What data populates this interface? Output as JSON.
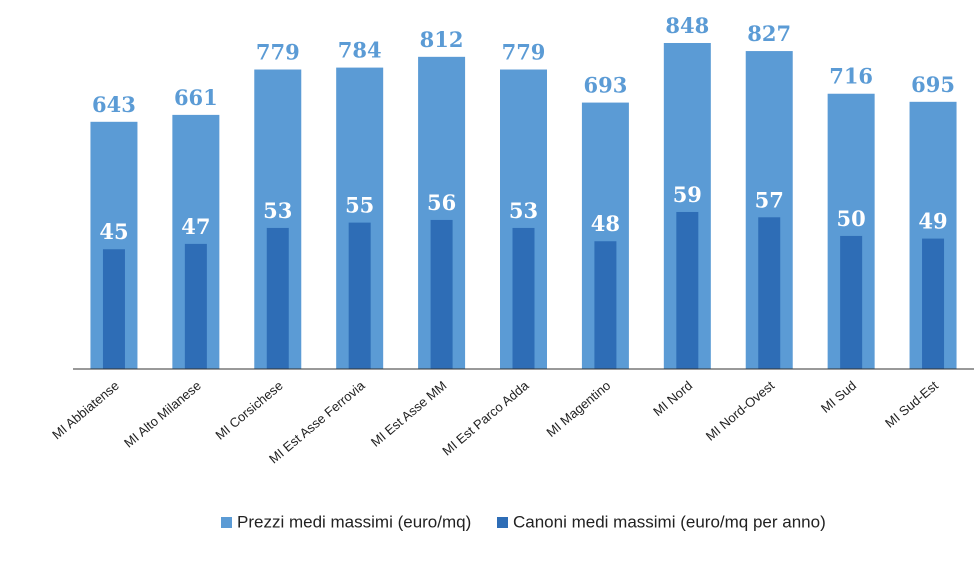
{
  "chart_data": {
    "type": "bar",
    "categories": [
      "MI Abbiatense",
      "MI Alto Milanese",
      "MI Corsichese",
      "MI Est Asse Ferrovia",
      "MI Est Asse MM",
      "MI Est Parco Adda",
      "MI Magentino",
      "MI Nord",
      "MI Nord-Ovest",
      "MI Sud",
      "MI Sud-Est"
    ],
    "series": [
      {
        "name": "Prezzi medi massimi (euro/mq)",
        "color": "#5b9bd5",
        "values": [
          643,
          661,
          779,
          784,
          812,
          779,
          693,
          848,
          827,
          716,
          695
        ]
      },
      {
        "name": "Canoni medi massimi (euro/mq per anno)",
        "color": "#2e6db6",
        "axis": "y2",
        "values": [
          45,
          47,
          53,
          55,
          56,
          53,
          48,
          59,
          57,
          50,
          49
        ]
      }
    ],
    "ylim": [
      0,
      900
    ],
    "y2lim": [
      0,
      130
    ],
    "legend": "bottom"
  }
}
